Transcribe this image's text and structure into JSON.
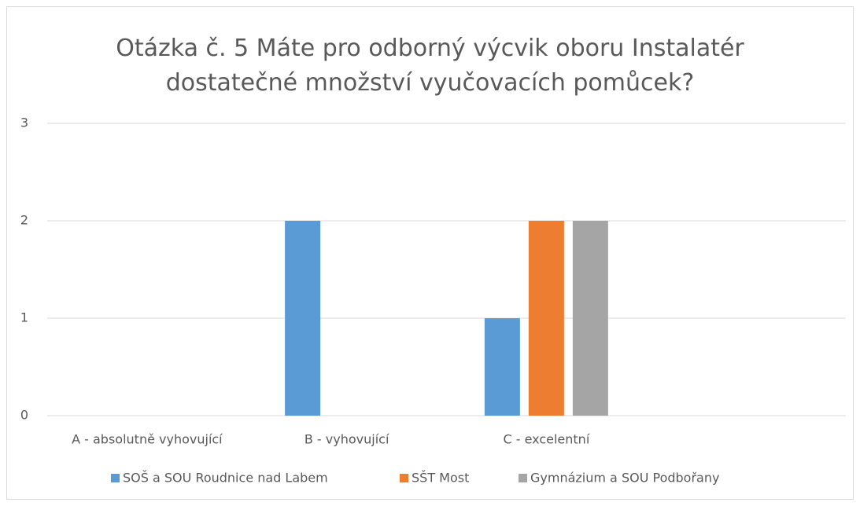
{
  "chart_data": {
    "type": "bar",
    "title": "Otázka č. 5 Máte pro odborný výcvik oboru Instalatér dostatečné množství vyučovacích pomůcek?",
    "categories": [
      "A - absolutně vyhovující",
      "B - vyhovující",
      "C - excelentní",
      null
    ],
    "series": [
      {
        "name": "SOŠ a SOU Roudnice nad Labem",
        "color": "#5b9bd5",
        "values": [
          0,
          2,
          1,
          0
        ]
      },
      {
        "name": "SŠT Most",
        "color": "#ed7d31",
        "values": [
          0,
          0,
          2,
          0
        ]
      },
      {
        "name": "Gymnázium a SOU Podbořany",
        "color": "#a5a5a5",
        "values": [
          0,
          0,
          2,
          0
        ]
      }
    ],
    "ylim": [
      0,
      3
    ],
    "yticks": [
      0,
      1,
      2,
      3
    ],
    "grid": true,
    "legend": "bottom"
  }
}
